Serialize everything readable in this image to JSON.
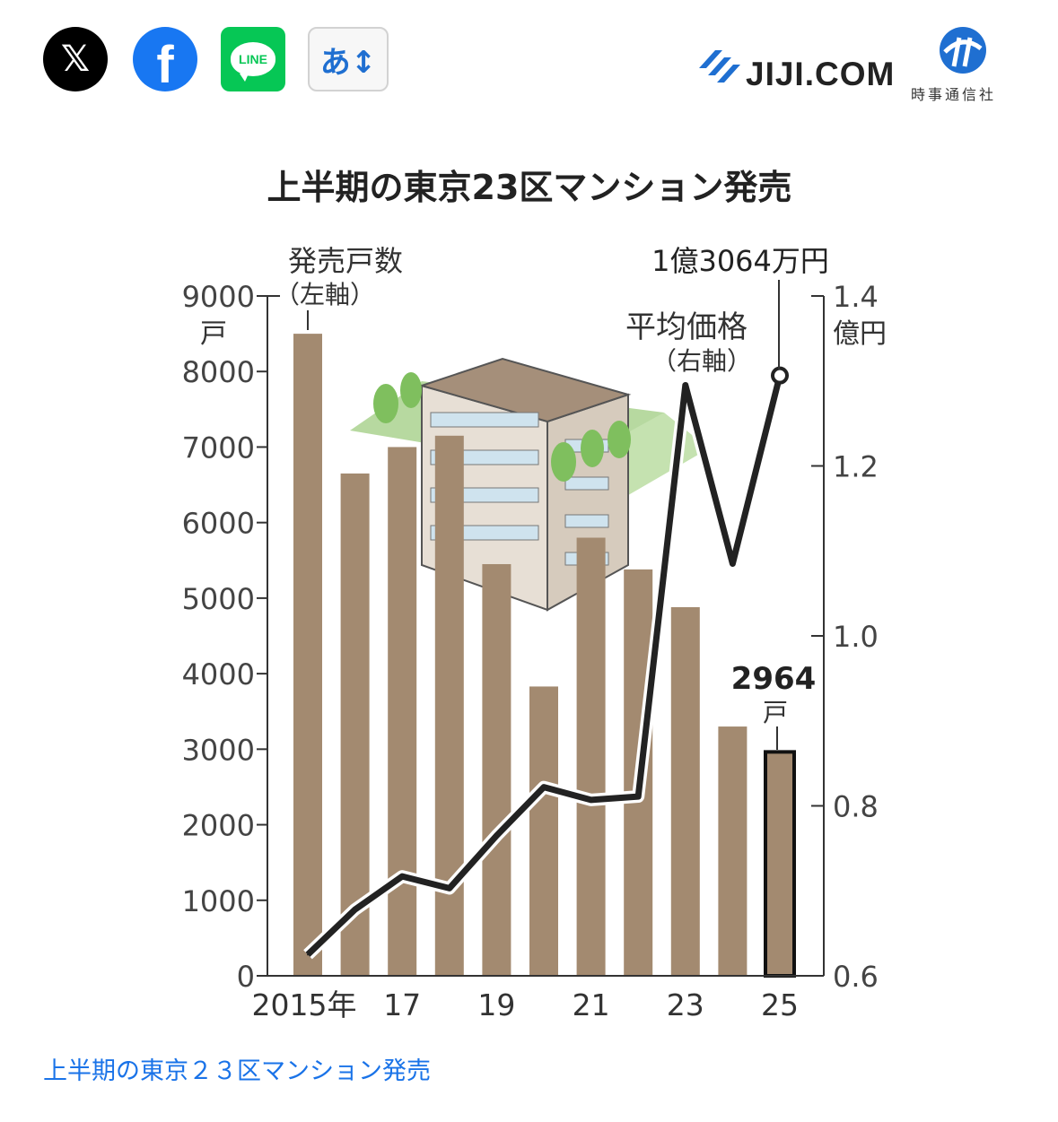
{
  "share": {
    "x_label": "𝕏",
    "facebook_label": "f",
    "line_label": "LINE",
    "font_size_label": "あ↕"
  },
  "logo": {
    "text": "JIJI.COM",
    "jp": "時事通信社"
  },
  "caption": "上半期の東京２３区マンション発売",
  "colors": {
    "bar": "#a38a70",
    "line": "#222222",
    "caption": "#1a73e8"
  },
  "chart_data": {
    "type": "bar",
    "title": "上半期の東京23区マンション発売",
    "x": [
      2015,
      2016,
      2017,
      2018,
      2019,
      2020,
      2021,
      2022,
      2023,
      2024,
      2025
    ],
    "x_tick_labels": [
      "2015年",
      "17",
      "19",
      "21",
      "23",
      "25"
    ],
    "x_tick_years": [
      2015,
      2017,
      2019,
      2021,
      2023,
      2025
    ],
    "series": [
      {
        "name": "発売戸数",
        "axis": "left",
        "values": [
          8500,
          6650,
          7000,
          7150,
          5450,
          3830,
          5800,
          5380,
          4880,
          3300,
          2964
        ]
      },
      {
        "name": "平均価格",
        "axis": "right",
        "values": [
          0.625,
          0.678,
          0.717,
          0.703,
          0.765,
          0.822,
          0.807,
          0.811,
          1.295,
          1.085,
          1.3064
        ]
      }
    ],
    "left_axis": {
      "label": "発売戸数",
      "label_sub": "（左軸）",
      "unit": "戸",
      "ylim": [
        0,
        9000
      ],
      "ticks": [
        0,
        1000,
        2000,
        3000,
        4000,
        5000,
        6000,
        7000,
        8000,
        9000
      ],
      "tick_labels": [
        "0",
        "1000",
        "2000",
        "3000",
        "4000",
        "5000",
        "6000",
        "7000",
        "8000",
        "9000"
      ]
    },
    "right_axis": {
      "label": "平均価格",
      "label_sub": "（右軸）",
      "unit": "億円",
      "ylim": [
        0.6,
        1.4
      ],
      "ticks": [
        0.6,
        0.8,
        1.0,
        1.2,
        1.4
      ],
      "tick_labels": [
        "0.6",
        "0.8",
        "1.0",
        "1.2",
        "1.4"
      ]
    },
    "annotations": {
      "price_2025": "1億3064万円",
      "units_2025": "2964",
      "units_2025_unit": "戸"
    },
    "grid": false
  }
}
